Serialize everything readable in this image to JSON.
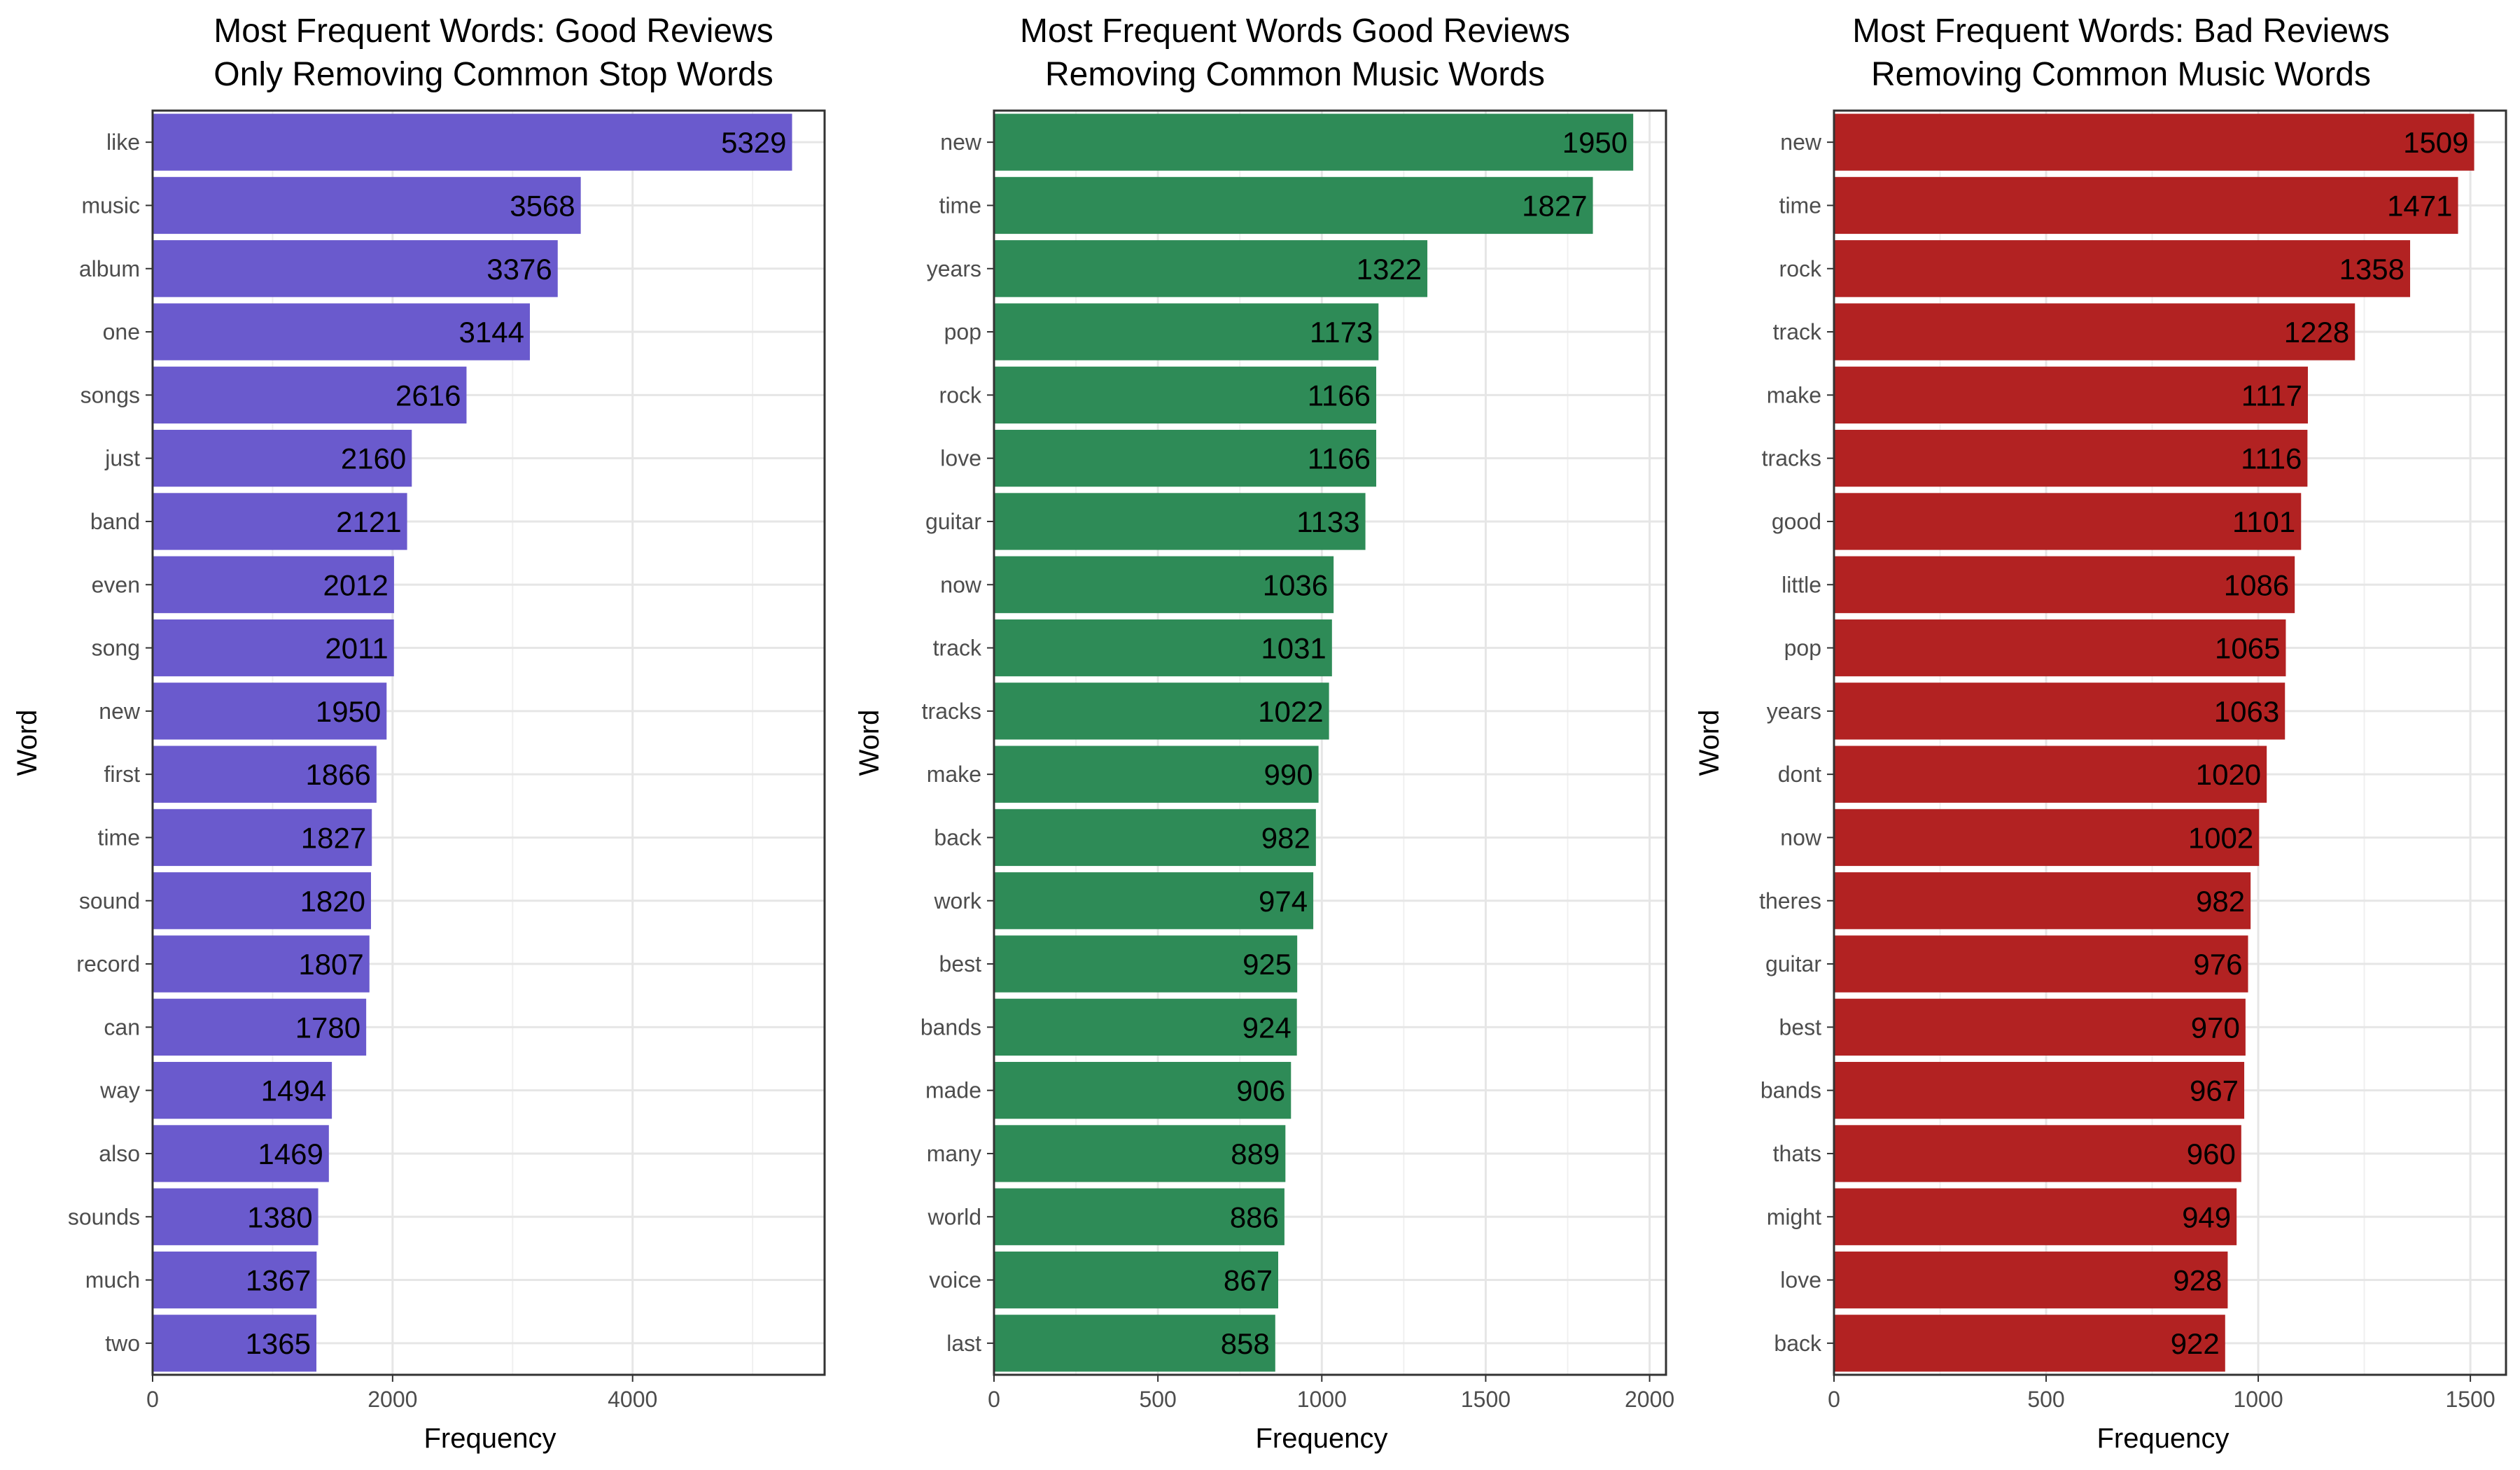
{
  "chart_data": [
    {
      "type": "bar",
      "orientation": "horizontal",
      "title_line1": "Most Frequent Words: Good Reviews",
      "title_line2": "Only Removing Common Stop Words",
      "xlabel": "Frequency",
      "ylabel": "Word",
      "color": "#6A5ACD",
      "xlim": [
        0,
        5600
      ],
      "xticks": [
        0,
        2000,
        4000
      ],
      "grid": true,
      "categories": [
        "like",
        "music",
        "album",
        "one",
        "songs",
        "just",
        "band",
        "even",
        "song",
        "new",
        "first",
        "time",
        "sound",
        "record",
        "can",
        "way",
        "also",
        "sounds",
        "much",
        "two"
      ],
      "values": [
        5329,
        3568,
        3376,
        3144,
        2616,
        2160,
        2121,
        2012,
        2011,
        1950,
        1866,
        1827,
        1820,
        1807,
        1780,
        1494,
        1469,
        1380,
        1367,
        1365
      ]
    },
    {
      "type": "bar",
      "orientation": "horizontal",
      "title_line1": "Most Frequent Words Good Reviews",
      "title_line2": "Removing Common Music Words",
      "xlabel": "Frequency",
      "ylabel": "Word",
      "color": "#2E8B57",
      "xlim": [
        0,
        2050
      ],
      "xticks": [
        0,
        500,
        1000,
        1500,
        2000
      ],
      "grid": true,
      "categories": [
        "new",
        "time",
        "years",
        "pop",
        "rock",
        "love",
        "guitar",
        "now",
        "track",
        "tracks",
        "make",
        "back",
        "work",
        "best",
        "bands",
        "made",
        "many",
        "world",
        "voice",
        "last"
      ],
      "values": [
        1950,
        1827,
        1322,
        1173,
        1166,
        1166,
        1133,
        1036,
        1031,
        1022,
        990,
        982,
        974,
        925,
        924,
        906,
        889,
        886,
        867,
        858
      ]
    },
    {
      "type": "bar",
      "orientation": "horizontal",
      "title_line1": "Most Frequent Words: Bad Reviews",
      "title_line2": "Removing Common Music Words",
      "xlabel": "Frequency",
      "ylabel": "Word",
      "color": "#B22222",
      "xlim": [
        0,
        1584
      ],
      "xticks": [
        0,
        500,
        1000,
        1500
      ],
      "grid": true,
      "categories": [
        "new",
        "time",
        "rock",
        "track",
        "make",
        "tracks",
        "good",
        "little",
        "pop",
        "years",
        "dont",
        "now",
        "theres",
        "guitar",
        "best",
        "bands",
        "thats",
        "might",
        "love",
        "back"
      ],
      "values": [
        1509,
        1471,
        1358,
        1228,
        1117,
        1116,
        1101,
        1086,
        1065,
        1063,
        1020,
        1002,
        982,
        976,
        970,
        967,
        960,
        949,
        928,
        922
      ]
    }
  ]
}
